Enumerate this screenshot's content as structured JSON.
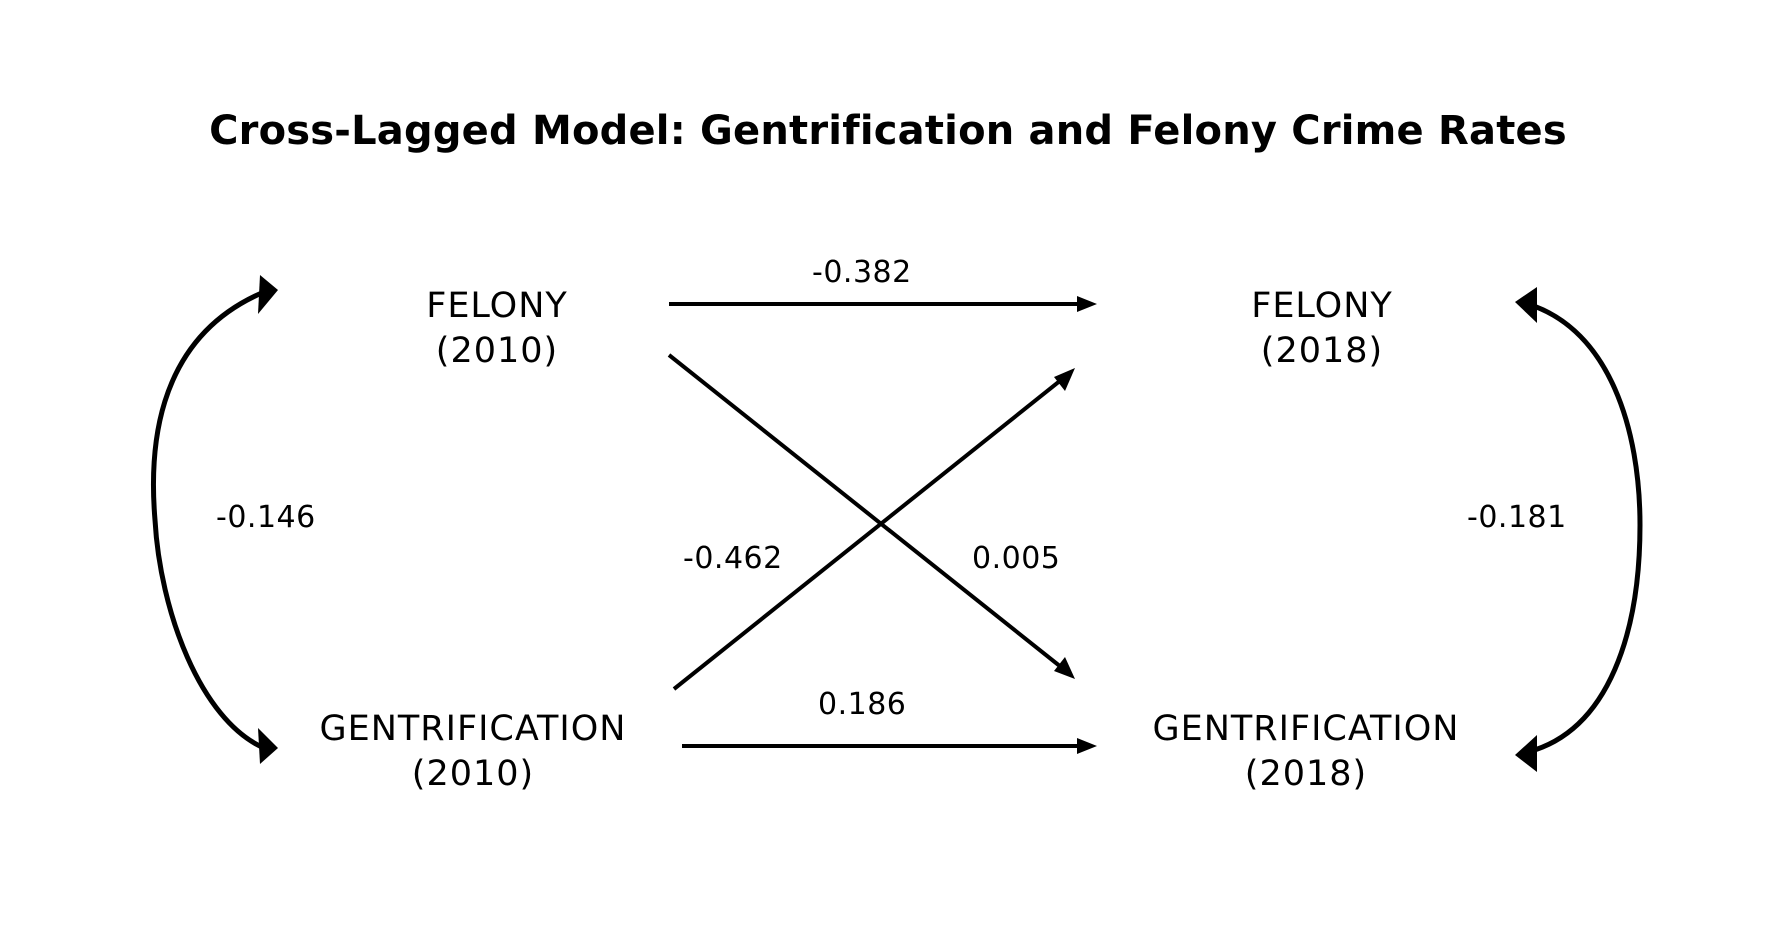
{
  "title": "Cross-Lagged Model: Gentrification and Felony Crime Rates",
  "nodes": {
    "felony_2010": {
      "name": "FELONY",
      "year": "(2010)"
    },
    "felony_2018": {
      "name": "FELONY",
      "year": "(2018)"
    },
    "gentrification_2010": {
      "name": "GENTRIFICATION",
      "year": "(2010)"
    },
    "gentrification_2018": {
      "name": "GENTRIFICATION",
      "year": "(2018)"
    }
  },
  "paths": {
    "felony_2010_to_felony_2018": "-0.382",
    "gentrification_2010_to_gentrification_2018": "0.186",
    "gentrification_2010_to_felony_2018": "-0.462",
    "felony_2010_to_gentrification_2018": "0.005"
  },
  "covariances": {
    "year_2010": "-0.146",
    "year_2018": "-0.181"
  },
  "colors": {
    "line": "#000000",
    "background": "#ffffff"
  }
}
